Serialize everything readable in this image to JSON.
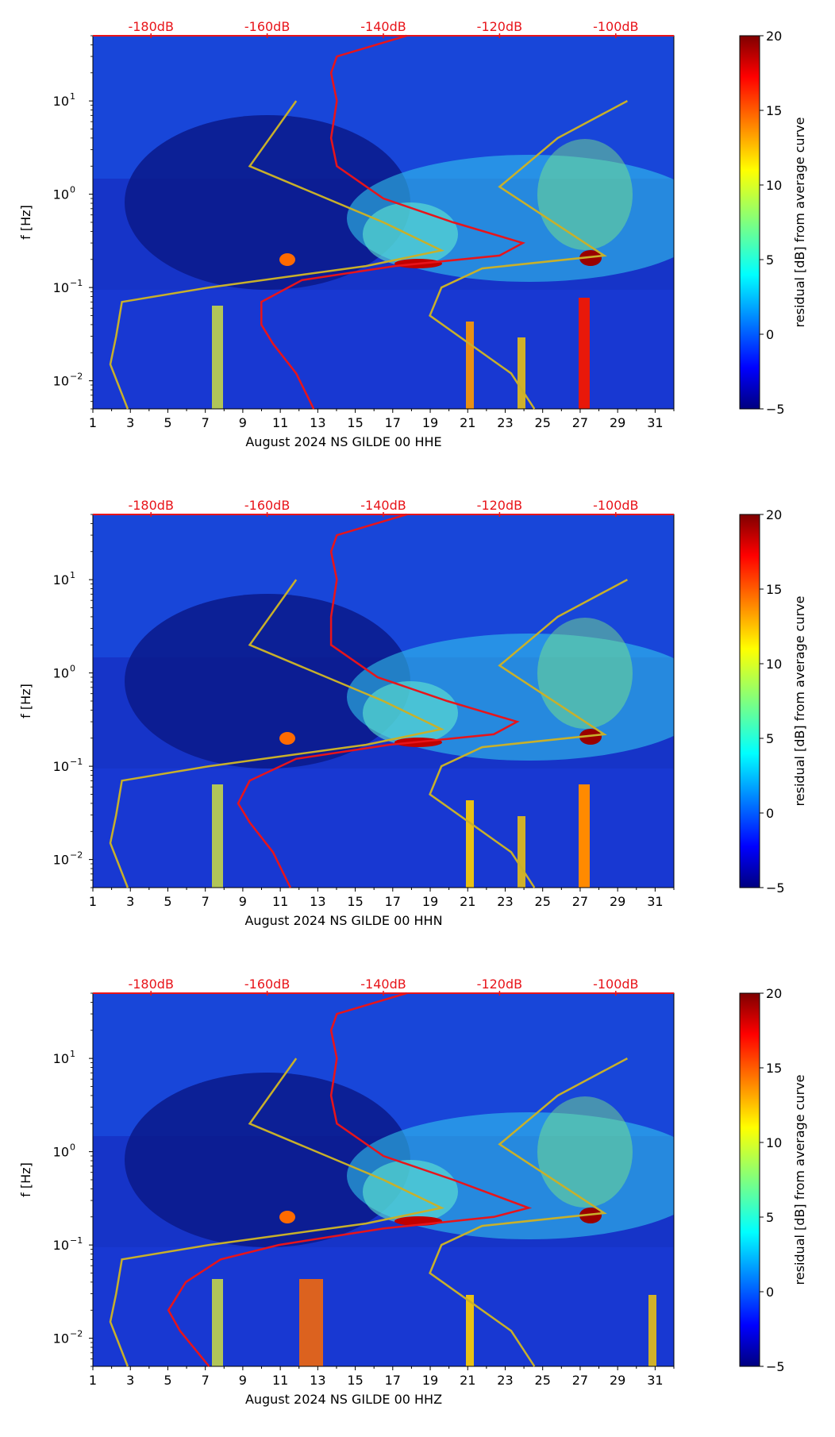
{
  "colors": {
    "noise_curves": "#c8b02a",
    "median_curve": "#e8141a",
    "top_axis_text": "#e8141a",
    "colormap": [
      "#00007f",
      "#0000ff",
      "#007fff",
      "#00ffff",
      "#7fff7f",
      "#ffff00",
      "#ff7f00",
      "#ff0000",
      "#7f0000"
    ]
  },
  "shared": {
    "ylabel": "f [Hz]",
    "colorbar_label": "residual [dB] from average curve",
    "colorbar_ticks": [
      "20",
      "15",
      "10",
      "5",
      "0",
      "−5"
    ],
    "colorbar_range": [
      -5,
      20
    ],
    "x_ticks": [
      "1",
      "3",
      "5",
      "7",
      "9",
      "11",
      "13",
      "15",
      "17",
      "19",
      "21",
      "23",
      "25",
      "27",
      "29",
      "31"
    ],
    "x_range_days": [
      1,
      32
    ],
    "y_ticks": [
      {
        "base": "10",
        "exp": "1",
        "value": 10
      },
      {
        "base": "10",
        "exp": "0",
        "value": 1
      },
      {
        "base": "10",
        "exp": "−1",
        "value": 0.1
      },
      {
        "base": "10",
        "exp": "−2",
        "value": 0.01
      }
    ],
    "y_range_hz": [
      0.005,
      50
    ],
    "db_ticks": [
      "-180dB",
      "-160dB",
      "-140dB",
      "-120dB",
      "-100dB"
    ],
    "db_range": [
      -190,
      -90
    ]
  },
  "chart_data": [
    {
      "type": "heatmap",
      "xlabel": "August 2024 NS GILDE 00 HHE",
      "ylabel": "f [Hz]",
      "median_psd_curve_db": [
        [
          -136,
          50
        ],
        [
          -148,
          30
        ],
        [
          -149,
          20
        ],
        [
          -148,
          10
        ],
        [
          -149,
          4
        ],
        [
          -148,
          2
        ],
        [
          -140,
          0.9
        ],
        [
          -128,
          0.5
        ],
        [
          -116,
          0.3
        ],
        [
          -120,
          0.22
        ],
        [
          -138,
          0.17
        ],
        [
          -154,
          0.12
        ],
        [
          -161,
          0.07
        ],
        [
          -161,
          0.04
        ],
        [
          -159,
          0.025
        ],
        [
          -155,
          0.012
        ],
        [
          -152,
          0.005
        ]
      ]
    },
    {
      "type": "heatmap",
      "xlabel": "August 2024 NS GILDE 00 HHN",
      "ylabel": "f [Hz]",
      "median_psd_curve_db": [
        [
          -136,
          50
        ],
        [
          -148,
          30
        ],
        [
          -149,
          20
        ],
        [
          -148,
          10
        ],
        [
          -149,
          4
        ],
        [
          -149,
          2
        ],
        [
          -141,
          0.9
        ],
        [
          -129,
          0.5
        ],
        [
          -117,
          0.3
        ],
        [
          -121,
          0.22
        ],
        [
          -139,
          0.17
        ],
        [
          -155,
          0.12
        ],
        [
          -163,
          0.07
        ],
        [
          -165,
          0.04
        ],
        [
          -163,
          0.025
        ],
        [
          -159,
          0.012
        ],
        [
          -156,
          0.005
        ]
      ]
    },
    {
      "type": "heatmap",
      "xlabel": "August 2024 NS GILDE 00 HHZ",
      "ylabel": "f [Hz]",
      "median_psd_curve_db": [
        [
          -136,
          50
        ],
        [
          -148,
          30
        ],
        [
          -149,
          20
        ],
        [
          -148,
          10
        ],
        [
          -149,
          4
        ],
        [
          -148,
          2
        ],
        [
          -140,
          0.9
        ],
        [
          -128,
          0.5
        ],
        [
          -115,
          0.25
        ],
        [
          -121,
          0.2
        ],
        [
          -140,
          0.15
        ],
        [
          -158,
          0.1
        ],
        [
          -168,
          0.07
        ],
        [
          -174,
          0.04
        ],
        [
          -177,
          0.02
        ],
        [
          -175,
          0.012
        ],
        [
          -170,
          0.005
        ]
      ]
    }
  ]
}
